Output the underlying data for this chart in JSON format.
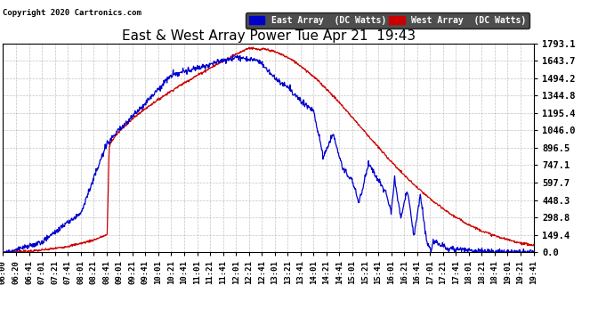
{
  "title": "East & West Array Power Tue Apr 21  19:43",
  "copyright": "Copyright 2020 Cartronics.com",
  "legend_east": "East Array  (DC Watts)",
  "legend_west": "West Array  (DC Watts)",
  "east_color": "#0000cc",
  "west_color": "#cc0000",
  "background_color": "#ffffff",
  "grid_color": "#aaaaaa",
  "yticks": [
    0.0,
    149.4,
    298.8,
    448.3,
    597.7,
    747.1,
    896.5,
    1046.0,
    1195.4,
    1344.8,
    1494.2,
    1643.7,
    1793.1
  ],
  "ymax": 1793.1,
  "ymin": 0.0,
  "xtick_labels": [
    "06:00",
    "06:20",
    "06:41",
    "07:01",
    "07:21",
    "07:41",
    "08:01",
    "08:21",
    "08:41",
    "09:01",
    "09:21",
    "09:41",
    "10:01",
    "10:21",
    "10:41",
    "11:01",
    "11:21",
    "11:41",
    "12:01",
    "12:21",
    "12:41",
    "13:01",
    "13:21",
    "13:41",
    "14:01",
    "14:21",
    "14:41",
    "15:01",
    "15:21",
    "15:41",
    "16:01",
    "16:21",
    "16:41",
    "17:01",
    "17:21",
    "17:41",
    "18:01",
    "18:21",
    "18:41",
    "19:01",
    "19:21",
    "19:41"
  ]
}
